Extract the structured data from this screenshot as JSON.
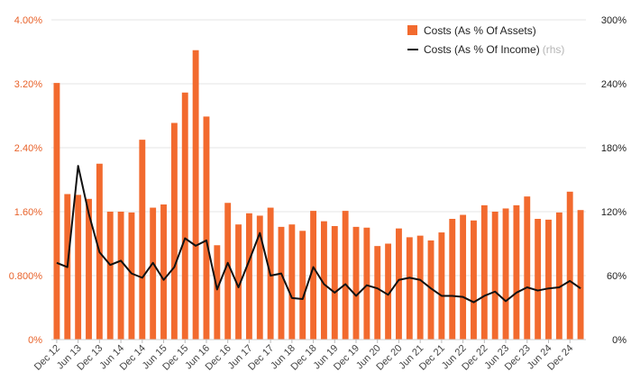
{
  "chart_data": {
    "type": "bar",
    "title": "",
    "xlabel": "",
    "ylabel": "",
    "ylim": [
      0,
      4.0
    ],
    "y2lim": [
      0,
      300
    ],
    "y_ticks": [
      "0%",
      "0.800%",
      "1.60%",
      "2.40%",
      "3.20%",
      "4.00%"
    ],
    "y_tick_values": [
      0,
      0.8,
      1.6,
      2.4,
      3.2,
      4.0
    ],
    "y2_ticks": [
      "0%",
      "60%",
      "120%",
      "180%",
      "240%",
      "300%"
    ],
    "y2_tick_values": [
      0,
      60,
      120,
      180,
      240,
      300
    ],
    "x_tick_labels": [
      "Dec 12",
      "Jun 13",
      "Dec 13",
      "Jun 14",
      "Dec 14",
      "Jun 15",
      "Dec 15",
      "Jun 16",
      "Dec 16",
      "Jun 17",
      "Dec 17",
      "Jun 18",
      "Dec 18",
      "Jun 19",
      "Dec 19",
      "Jun 20",
      "Dec 20",
      "Jun 21",
      "Dec 21",
      "Jun 22",
      "Dec 22",
      "Jun 23",
      "Dec 23",
      "Jun 24",
      "Dec 24"
    ],
    "x_tick_every": 2,
    "colors": {
      "bars": "#f26a2e",
      "line": "#111111",
      "left_ticks": "#e8622a",
      "grid": "#e6e6e6"
    },
    "legend_position": "top-right",
    "series": [
      {
        "name": "Costs (As % Of Assets)",
        "axis": "left",
        "type": "bar",
        "values": [
          3.21,
          1.82,
          1.81,
          1.76,
          2.2,
          1.6,
          1.6,
          1.59,
          2.5,
          1.65,
          1.69,
          2.71,
          3.09,
          3.62,
          2.79,
          1.18,
          1.71,
          1.44,
          1.58,
          1.55,
          1.65,
          1.41,
          1.44,
          1.36,
          1.61,
          1.48,
          1.42,
          1.61,
          1.41,
          1.4,
          1.17,
          1.2,
          1.39,
          1.28,
          1.3,
          1.24,
          1.34,
          1.51,
          1.56,
          1.49,
          1.68,
          1.6,
          1.64,
          1.68,
          1.79,
          1.51,
          1.5,
          1.59,
          1.85,
          1.62
        ]
      },
      {
        "name": "Costs (As % Of Income)",
        "name_suffix": "(rhs)",
        "axis": "right",
        "type": "line",
        "values": [
          72,
          68,
          163,
          118,
          82,
          70,
          74,
          62,
          58,
          72,
          56,
          68,
          95,
          88,
          93,
          47,
          72,
          49,
          74,
          100,
          60,
          62,
          39,
          38,
          68,
          52,
          44,
          52,
          41,
          51,
          48,
          42,
          56,
          58,
          56,
          48,
          41,
          41,
          40,
          35,
          41,
          45,
          36,
          44,
          49,
          46,
          48,
          49,
          55,
          48
        ]
      }
    ]
  }
}
